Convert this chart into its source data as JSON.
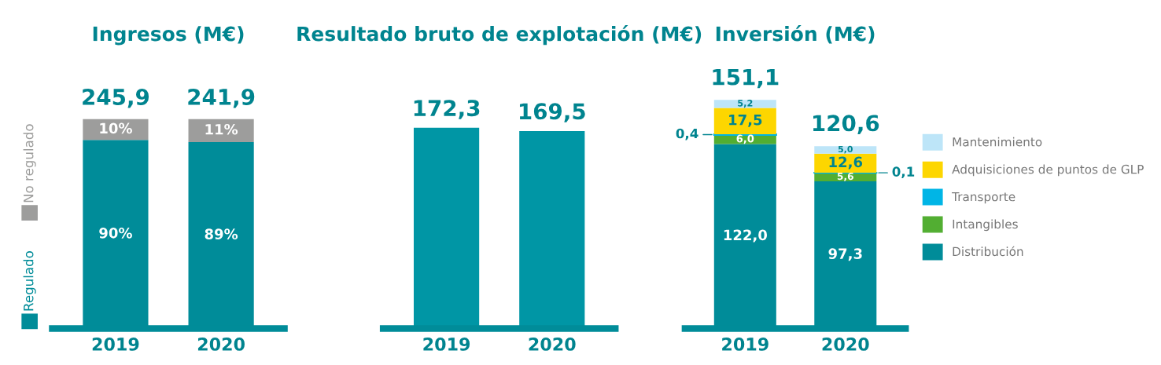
{
  "chart_data": [
    {
      "type": "bar",
      "title": "Ingresos (M€)",
      "categories": [
        "2019",
        "2020"
      ],
      "stacked": true,
      "legend": "left",
      "tick_labels": "x",
      "annotations": [
        {
          "text": "245,9",
          "x": "2019",
          "y": 100
        },
        {
          "text": "241,9",
          "x": "2020",
          "y": 100
        }
      ],
      "series": [
        {
          "name": "Regulado",
          "color": "#008c99",
          "values": [
            90,
            89
          ],
          "value_labels": [
            "90%",
            "89%"
          ]
        },
        {
          "name": "No regulado",
          "color": "#9d9d9c",
          "values": [
            10,
            11
          ],
          "value_labels": [
            "10%",
            "11%"
          ]
        }
      ]
    },
    {
      "type": "bar",
      "title": "Resultado bruto de explotación (M€)",
      "categories": [
        "2019",
        "2020"
      ],
      "tick_labels": "x",
      "color": "#0096a5",
      "values": [
        172.3,
        169.5
      ],
      "value_labels": [
        "172,3",
        "169,5"
      ]
    },
    {
      "type": "bar",
      "title": "Inversión (M€)",
      "categories": [
        "2019",
        "2020"
      ],
      "stacked": true,
      "legend": "right",
      "tick_labels": "x",
      "totals": [
        "151,1",
        "120,6"
      ],
      "series": [
        {
          "name": "Distribución",
          "color": "#008c99",
          "values": [
            122.0,
            97.3
          ],
          "value_labels": [
            "122,0",
            "97,3"
          ]
        },
        {
          "name": "Intangibles",
          "color": "#52ae32",
          "values": [
            6.0,
            5.6
          ],
          "value_labels": [
            "6,0",
            "5,6"
          ]
        },
        {
          "name": "Transporte",
          "color": "#00b5e6",
          "values": [
            0.4,
            0.1
          ],
          "value_labels": [
            "0,4",
            "0,1"
          ]
        },
        {
          "name": "Adquisiciones de puntos de GLP",
          "color": "#fdd600",
          "values": [
            17.5,
            12.6
          ],
          "value_labels": [
            "17,5",
            "12,6"
          ]
        },
        {
          "name": "Mantenimiento",
          "color": "#bde5f8",
          "values": [
            5.2,
            5.0
          ],
          "value_labels": [
            "5,2",
            "5,0"
          ]
        }
      ]
    }
  ]
}
